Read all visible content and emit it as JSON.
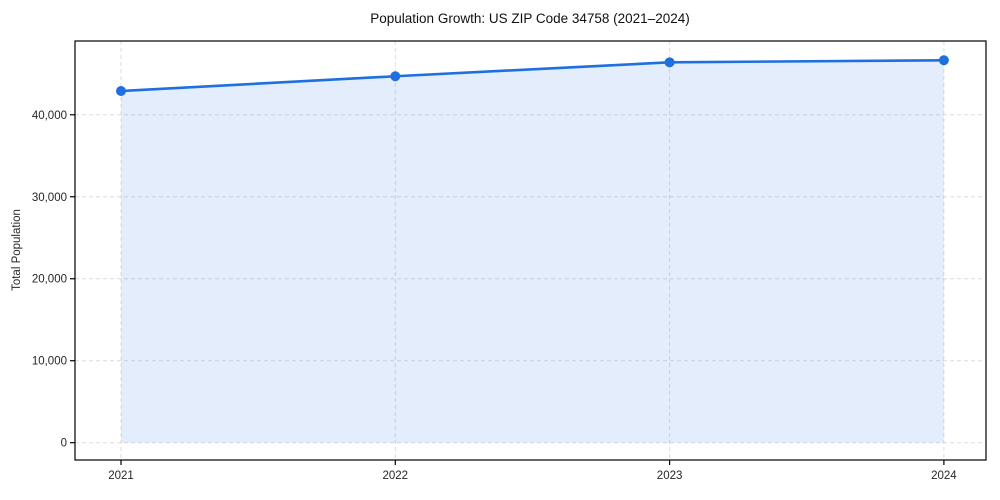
{
  "chart_data": {
    "type": "line",
    "title": "Population Growth: US ZIP Code 34758 (2021–2024)",
    "xlabel": "",
    "ylabel": "Total Population",
    "categories": [
      "2021",
      "2022",
      "2023",
      "2024"
    ],
    "series": [
      {
        "name": "Total Population",
        "values": [
          42900,
          44700,
          46400,
          46650
        ]
      }
    ],
    "ylim": [
      0,
      49000
    ],
    "yticks": [
      0,
      10000,
      20000,
      30000,
      40000
    ],
    "ytick_labels": [
      "0",
      "10,000",
      "20,000",
      "30,000",
      "40,000"
    ],
    "grid": true,
    "grid_style": "dashed",
    "legend": "none",
    "colors": {
      "line": "#1e6fe0",
      "marker": "#1e6fe0",
      "fill": "#1e6fe0",
      "gridline": "#dcdcdc",
      "spine": "#000000",
      "background": "#ffffff"
    },
    "fill_opacity": 0.12,
    "marker": "circle"
  }
}
